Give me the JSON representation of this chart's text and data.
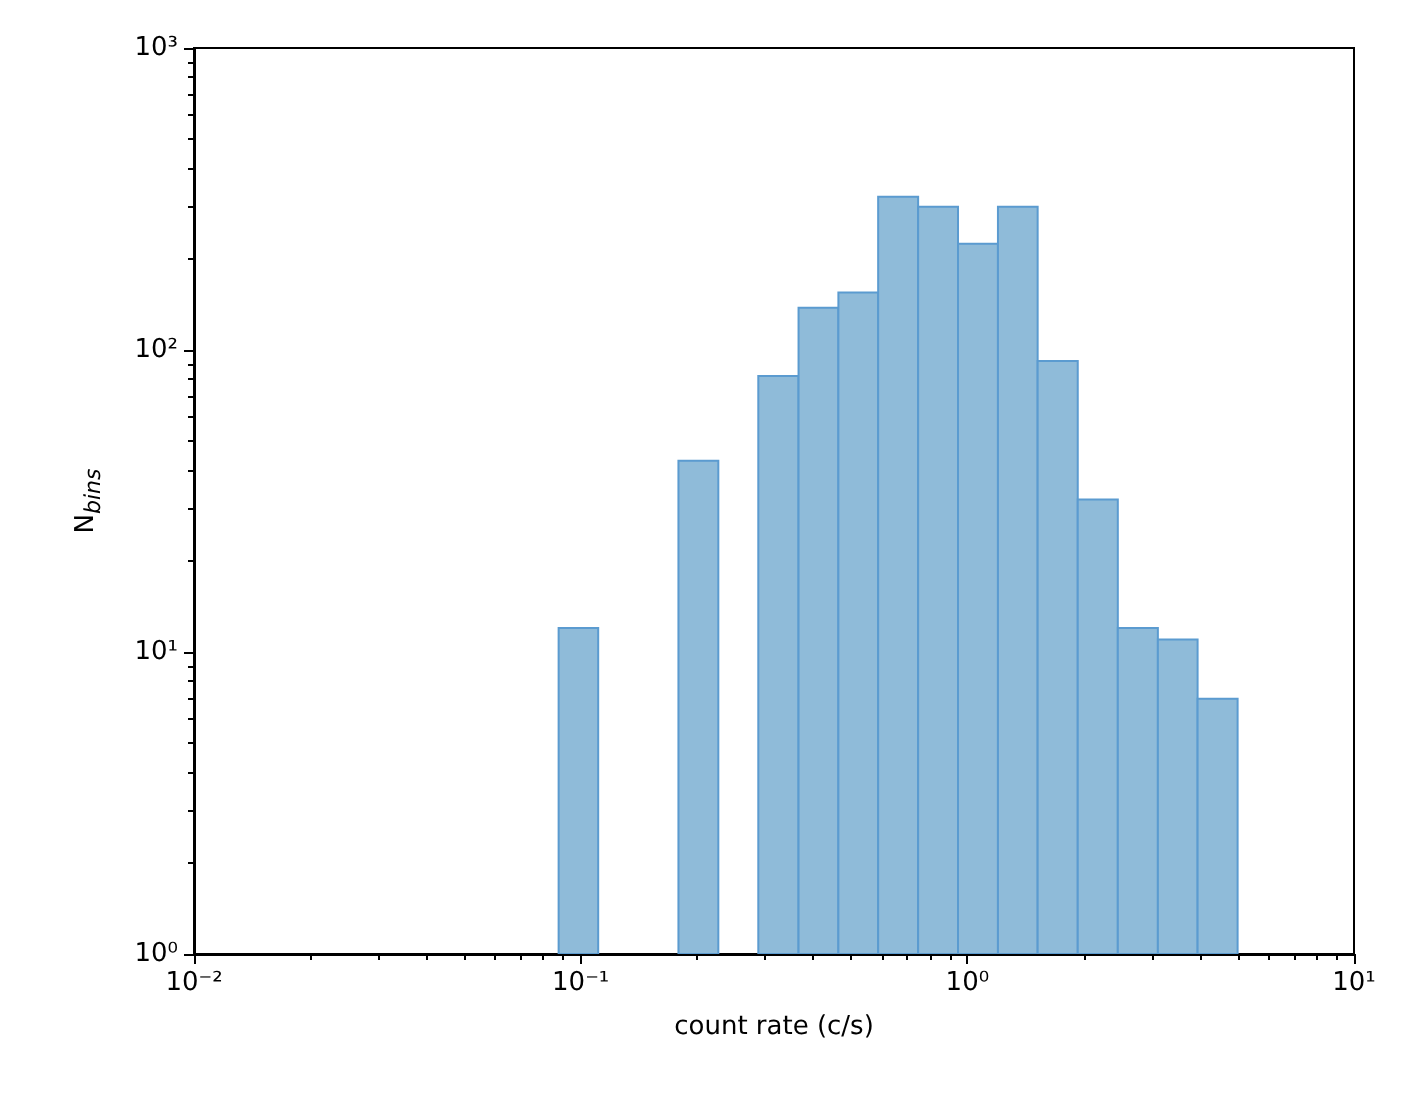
{
  "chart_data": {
    "type": "histogram",
    "xlabel": "count rate (c/s)",
    "ylabel": "N$_{bins}$",
    "log": "xy",
    "bins": [
      0.0877,
      0.111,
      0.179,
      0.227,
      0.288,
      0.366,
      0.464,
      0.588,
      0.746,
      0.946,
      1.2,
      1.52,
      1.93,
      2.45,
      3.11,
      3.94,
      5.0
    ],
    "values": [
      12,
      null,
      43,
      null,
      82,
      138,
      155,
      322,
      298,
      225,
      298,
      92,
      32,
      12,
      11,
      7
    ],
    "color": "#8fbbd9",
    "xlim": [
      0.01,
      10
    ],
    "xticks": [
      {
        "value": 0.01,
        "label": "10⁻²"
      },
      {
        "value": 0.1,
        "label": "10⁻¹"
      },
      {
        "value": 1,
        "label": "10⁰"
      },
      {
        "value": 10,
        "label": "10¹"
      }
    ],
    "ylim": [
      1,
      1000
    ],
    "yticks": [
      {
        "value": 1,
        "label": "10⁰"
      },
      {
        "value": 10,
        "label": "10¹"
      },
      {
        "value": 100,
        "label": "10²"
      },
      {
        "value": 1000,
        "label": "10³"
      }
    ]
  }
}
